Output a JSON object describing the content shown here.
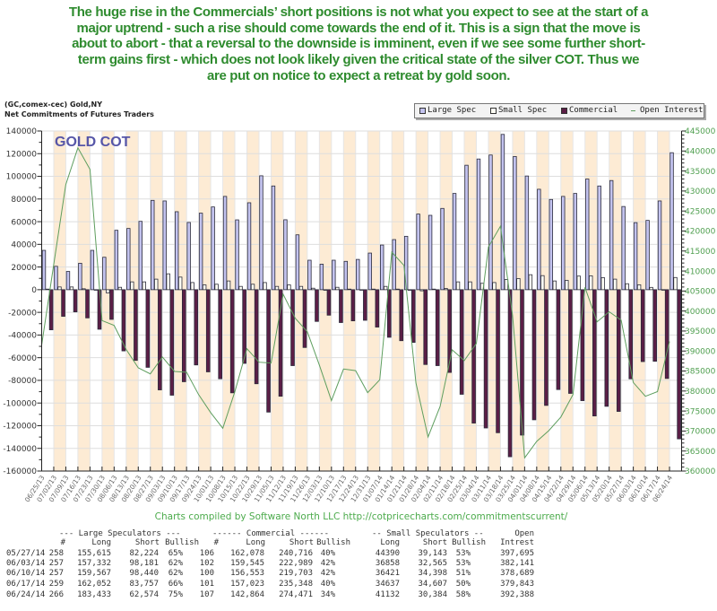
{
  "annotation": {
    "lines": [
      "The huge rise in the Commercials’ short positions is not what you expect to see at the start of a",
      "major uptrend - such a rise should come towards the end of it. This is a sign that the move is",
      "about to abort - that a reversal to the downside is imminent, even if we see some further short-",
      "term gains first - which does not look likely given the critical state of the silver COT. Thus we",
      "are put on notice to expect a retreat by gold soon."
    ]
  },
  "chart_header": {
    "symbol": "(GC,comex-cec) Gold,NY",
    "subtitle": "Net Commitments of Futures Traders"
  },
  "chart_data": {
    "type": "bar",
    "title": "GOLD COT",
    "xlabel": "",
    "ylabel": "",
    "grid": true,
    "legend_position": "top-right",
    "legend": [
      {
        "label": "Large Spec",
        "icon": "hollow-square"
      },
      {
        "label": "Small Spec",
        "icon": "hollow-square"
      },
      {
        "label": "Commercial",
        "icon": "filled-square"
      },
      {
        "label": "Open Interest",
        "icon": "dash"
      }
    ],
    "colors": {
      "large_spec": "#c3c3ef",
      "small_spec": "#fffff4",
      "commercial": "#5b1e46",
      "open_interest": "#5e9e5e",
      "bar_outline": "#2b2b3b",
      "band": "#fdebd4",
      "title": "#5656a8",
      "right_axis": "#4f9f4f"
    },
    "left_axis": {
      "min": -160000,
      "max": 140000,
      "step": 20000,
      "ticks": [
        "140000",
        "120000",
        "100000",
        "80000",
        "60000",
        "40000",
        "20000",
        "0",
        "-20000",
        "-40000",
        "-60000",
        "-80000",
        "-100000",
        "-120000",
        "-140000",
        "-160000"
      ]
    },
    "right_axis": {
      "min": 360000,
      "max": 445000,
      "step": 5000,
      "ticks": [
        "445000",
        "440000",
        "435000",
        "430000",
        "425000",
        "420000",
        "415000",
        "410000",
        "405000",
        "400000",
        "395000",
        "390000",
        "385000",
        "380000",
        "375000",
        "370000",
        "365000",
        "360000"
      ]
    },
    "categories": [
      "06/25/13",
      "07/02/13",
      "07/09/13",
      "07/16/13",
      "07/23/13",
      "07/30/13",
      "08/06/13",
      "08/13/13",
      "08/20/13",
      "08/27/13",
      "09/03/13",
      "09/10/13",
      "09/17/13",
      "09/24/13",
      "10/01/13",
      "10/08/13",
      "10/15/13",
      "10/22/13",
      "10/29/13",
      "11/05/13",
      "11/12/13",
      "11/19/13",
      "11/26/13",
      "12/03/13",
      "12/10/13",
      "12/17/13",
      "12/24/13",
      "12/31/13",
      "01/07/14",
      "01/14/14",
      "01/21/14",
      "01/28/14",
      "02/04/14",
      "02/11/14",
      "02/18/14",
      "02/25/14",
      "03/04/14",
      "03/11/14",
      "03/18/14",
      "03/25/14",
      "04/01/14",
      "04/08/14",
      "04/15/14",
      "04/22/14",
      "04/29/14",
      "05/06/14",
      "05/13/14",
      "05/20/14",
      "05/27/14",
      "06/03/14",
      "06/10/14",
      "06/17/14",
      "06/24/14"
    ],
    "series": [
      {
        "name": "Large Spec",
        "type": "bar",
        "axis": "left",
        "values": [
          34700,
          20600,
          16100,
          23300,
          34700,
          28600,
          52400,
          54000,
          60300,
          78800,
          78300,
          68800,
          59300,
          67500,
          73000,
          82300,
          61600,
          76700,
          100500,
          91500,
          61700,
          48400,
          26000,
          22500,
          26000,
          25000,
          26700,
          32300,
          39400,
          44200,
          47100,
          66700,
          65600,
          71700,
          84900,
          109800,
          115300,
          118800,
          137000,
          117500,
          100300,
          88600,
          79600,
          82300,
          84900,
          97600,
          91500,
          96300,
          73391,
          59151,
          61127,
          78295,
          120859
        ]
      },
      {
        "name": "Small Spec",
        "type": "bar",
        "axis": "left",
        "values": [
          500,
          2400,
          2400,
          800,
          0,
          -2900,
          2100,
          6900,
          6900,
          9300,
          14000,
          11100,
          6300,
          4200,
          4800,
          7700,
          2900,
          4800,
          6300,
          2900,
          4200,
          2900,
          1300,
          -500,
          2100,
          500,
          -300,
          500,
          2900,
          500,
          -500,
          -1000,
          500,
          1000,
          6900,
          6900,
          5600,
          6300,
          9000,
          9800,
          13200,
          12400,
          7700,
          8200,
          12000,
          12200,
          10600,
          9300,
          5247,
          4293,
          2023,
          30,
          10748
        ]
      },
      {
        "name": "Commercial",
        "type": "bar",
        "axis": "left",
        "values": [
          -35400,
          -23500,
          -19600,
          -24900,
          -34900,
          -26200,
          -54000,
          -62400,
          -68500,
          -88400,
          -93100,
          -81200,
          -66400,
          -72500,
          -78600,
          -91000,
          -65000,
          -83000,
          -108000,
          -94000,
          -67000,
          -51000,
          -28000,
          -22500,
          -29000,
          -27500,
          -27000,
          -33000,
          -42000,
          -45000,
          -46500,
          -66000,
          -67000,
          -73000,
          -92300,
          -117700,
          -122000,
          -126200,
          -147400,
          -128300,
          -114800,
          -102100,
          -88100,
          -91500,
          -97900,
          -111400,
          -102900,
          -107400,
          -78638,
          -63444,
          -63150,
          -78325,
          -131607
        ]
      },
      {
        "name": "Open Interest",
        "type": "line",
        "axis": "right",
        "values": [
          391500,
          411700,
          431600,
          440800,
          435400,
          397600,
          396400,
          390400,
          385800,
          384300,
          388500,
          384900,
          384700,
          379100,
          374600,
          370700,
          379800,
          390600,
          387200,
          387000,
          404200,
          398200,
          394800,
          386500,
          377600,
          385500,
          385100,
          379600,
          382800,
          414700,
          411400,
          382000,
          368500,
          376200,
          390300,
          387600,
          391900,
          416000,
          421200,
          398900,
          363300,
          367400,
          370100,
          373500,
          379100,
          405900,
          397300,
          399800,
          397695,
          382141,
          378689,
          379843,
          392388
        ]
      }
    ]
  },
  "credits": "Charts compiled by Software North LLC  http://cotpricecharts.com/commitmentscurrent/",
  "table": {
    "group_headers": [
      "--- Large Speculators ---",
      "------ Commercial ------",
      "-- Small Speculators --",
      "Open"
    ],
    "column_headers": [
      "#",
      "Long",
      "Short",
      "Bullish",
      "#",
      "Long",
      "Short",
      "Bullish",
      "Long",
      "Short",
      "Bullish",
      "Intrest"
    ],
    "rows": [
      [
        "05/27/14",
        "258",
        "155,615",
        "82,224",
        "65%",
        "106",
        "162,078",
        "240,716",
        "40%",
        "44390",
        "39,143",
        "53%",
        "397,695"
      ],
      [
        "06/03/14",
        "257",
        "157,332",
        "98,181",
        "62%",
        "102",
        "159,545",
        "222,989",
        "42%",
        "36858",
        "32,565",
        "53%",
        "382,141"
      ],
      [
        "06/10/14",
        "257",
        "159,567",
        "98,440",
        "62%",
        "100",
        "156,553",
        "219,703",
        "42%",
        "36421",
        "34,398",
        "51%",
        "378,689"
      ],
      [
        "06/17/14",
        "259",
        "162,052",
        "83,757",
        "66%",
        "101",
        "157,023",
        "235,348",
        "40%",
        "34637",
        "34,607",
        "50%",
        "379,843"
      ],
      [
        "06/24/14",
        "266",
        "183,433",
        "62,574",
        "75%",
        "107",
        "142,864",
        "274,471",
        "34%",
        "41132",
        "30,384",
        "58%",
        "392,388"
      ]
    ]
  }
}
